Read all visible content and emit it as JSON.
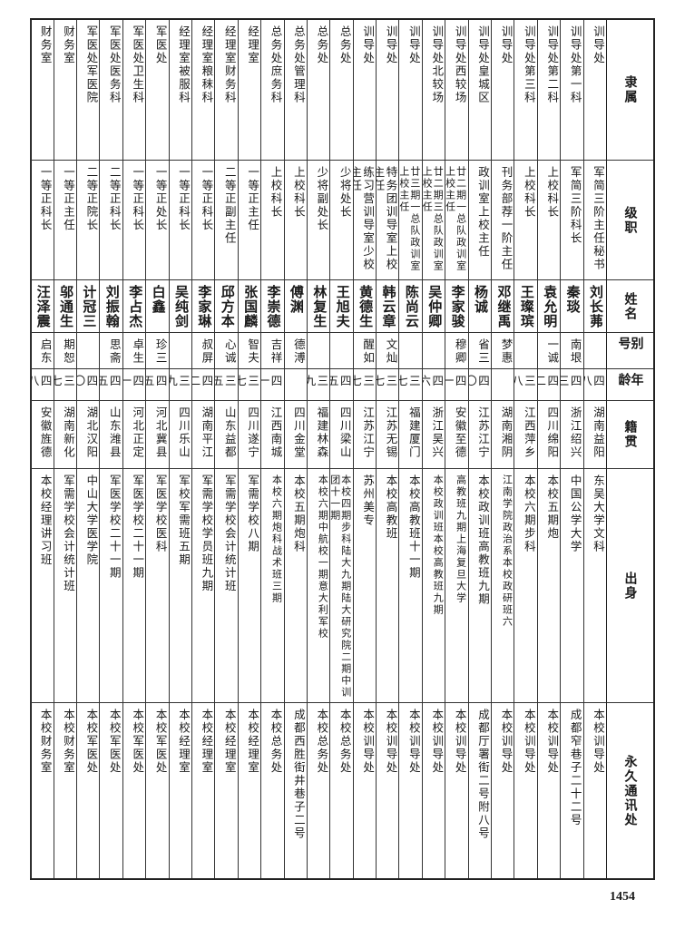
{
  "headers": {
    "department": "隶属",
    "rank": "级职",
    "name": "姓名",
    "alias": "别号",
    "age": "年龄",
    "native_place": "籍贯",
    "education": "出身",
    "address": "永久通讯处"
  },
  "rows": [
    {
      "department": "训导处",
      "rank": "军简三阶主任秘书",
      "name": "刘长茀",
      "alias": "",
      "age": "四八",
      "native_place": "湖南益阳",
      "education": "东吴大学文科",
      "address": "本校训导处"
    },
    {
      "department": "训导处第一科",
      "rank": "军简三阶科长",
      "name": "秦琰",
      "alias": "南垠",
      "age": "四三",
      "native_place": "浙江绍兴",
      "education": "中国公学大学",
      "address": "成都窄巷子二十二号"
    },
    {
      "department": "训导处第二科",
      "rank": "上校科长",
      "name": "袁允明",
      "alias": "一诚",
      "age": "四二",
      "native_place": "四川绵阳",
      "education": "本校五期炮",
      "address": "本校训导处"
    },
    {
      "department": "训导处第三科",
      "rank": "上校科长",
      "name": "王璨瑸",
      "alias": "",
      "age": "三八",
      "native_place": "江西萍乡",
      "education": "本校六期步科",
      "address": "本校训导处"
    },
    {
      "department": "训导处",
      "rank": "刊务部荐一阶主任",
      "name": "邓继禹",
      "alias": "梦惠",
      "age": "",
      "native_place": "湖南湘阴",
      "education": "江南学院政治系本校政研班六",
      "address": "本校训导处"
    },
    {
      "department": "训导处皇城区",
      "rank": "政训室上校主任",
      "name": "杨诚",
      "alias": "省三",
      "age": "四〇",
      "native_place": "江苏江宁",
      "education": "本校政训班高教班九期",
      "address": "成都厅署街二号附八号"
    },
    {
      "department": "训导处西较场",
      "rank": "廿二期一总队政训室上校主任",
      "name": "李家骏",
      "alias": "穆卿",
      "age": "四一",
      "native_place": "安徽至德",
      "education": "高教班九期上海复旦大学",
      "address": "本校训导处"
    },
    {
      "department": "训导处北较场",
      "rank": "廿二期三总队政训室上校主任",
      "name": "吴仲卿",
      "alias": "",
      "age": "四六",
      "native_place": "浙江吴兴",
      "education": "本校政训班本校高教班九期",
      "address": "本校训导处"
    },
    {
      "department": "训导处",
      "rank": "廿三期一总队政训室上校主任",
      "name": "陈尚云",
      "alias": "",
      "age": "三七",
      "native_place": "福建厦门",
      "education": "本校高教班十一期",
      "address": "本校训导处"
    },
    {
      "department": "训导处",
      "rank": "特务团训导室上校主任",
      "name": "韩云章",
      "alias": "文灿",
      "age": "三七",
      "native_place": "江苏无锡",
      "education": "本校高教班",
      "address": "本校训导处"
    },
    {
      "department": "训导处",
      "rank": "练习营训导室少校主任",
      "name": "黄德生",
      "alias": "醒如",
      "age": "三七",
      "native_place": "江苏江宁",
      "education": "苏州美专",
      "address": "本校训导处"
    },
    {
      "department": "总务处",
      "rank": "少将处长",
      "name": "王旭夫",
      "alias": "",
      "age": "四五",
      "native_place": "四川梁山",
      "education": "本校四期步科陆大九期陆大研究院二期中训团十一期",
      "address": "本校总务处"
    },
    {
      "department": "总务处",
      "rank": "少将副处长",
      "name": "林复生",
      "alias": "",
      "age": "三九",
      "native_place": "福建林森",
      "education": "本校六期中航校一期意大利军校",
      "address": "本校总务处"
    },
    {
      "department": "总务处管理科",
      "rank": "上校科长",
      "name": "傅渊",
      "alias": "德溥",
      "age": "",
      "native_place": "四川金堂",
      "education": "本校五期炮科",
      "address": "成都西胜街井巷子二号"
    },
    {
      "department": "总务处庶务科",
      "rank": "上校科长",
      "name": "李崇德",
      "alias": "吉祥",
      "age": "四一",
      "native_place": "江西南城",
      "education": "本校六期炮科战术班三期",
      "address": "本校总务处"
    },
    {
      "department": "经理室",
      "rank": "一等正主任",
      "name": "张国麟",
      "alias": "智夫",
      "age": "三七",
      "native_place": "四川遂宁",
      "education": "军需学校八期",
      "address": "本校经理室"
    },
    {
      "department": "经理室财务科",
      "rank": "二等正副主任",
      "name": "邱方本",
      "alias": "心诚",
      "age": "三五",
      "native_place": "山东益都",
      "education": "军需学校会计统计班",
      "address": "本校经理室"
    },
    {
      "department": "经理室粮秣科",
      "rank": "一等正科长",
      "name": "李家琳",
      "alias": "叔屏",
      "age": "四二",
      "native_place": "湖南平江",
      "education": "军需学校学员班九期",
      "address": "本校经理室"
    },
    {
      "department": "经理室被服科",
      "rank": "一等正科长",
      "name": "吴纯剑",
      "alias": "",
      "age": "三九",
      "native_place": "四川乐山",
      "education": "军校军需班五期",
      "address": "本校经理室"
    },
    {
      "department": "军医处",
      "rank": "一等正处长",
      "name": "白鑫",
      "alias": "珍三",
      "age": "四五",
      "native_place": "河北冀县",
      "education": "军医学校医科",
      "address": "本校军医处"
    },
    {
      "department": "军医处卫生科",
      "rank": "一等正科长",
      "name": "李占杰",
      "alias": "卓生",
      "age": "四一",
      "native_place": "河北正定",
      "education": "军医学校二十一期",
      "address": "本校军医处"
    },
    {
      "department": "军医处医务科",
      "rank": "二等正科长",
      "name": "刘振翰",
      "alias": "思斋",
      "age": "四五",
      "native_place": "山东潍县",
      "education": "军医学校二十一期",
      "address": "本校军医处"
    },
    {
      "department": "军医处军医院",
      "rank": "二等正院长",
      "name": "计冠三",
      "alias": "",
      "age": "四〇",
      "native_place": "湖北汉阳",
      "education": "中山大学医学院",
      "address": "本校军医处"
    },
    {
      "department": "财务室",
      "rank": "一等正主任",
      "name": "邬通生",
      "alias": "期恕",
      "age": "三七",
      "native_place": "湖南新化",
      "education": "军需学校会计统计班",
      "address": "本校财务室"
    },
    {
      "department": "财务室",
      "rank": "一等正科长",
      "name": "汪泽震",
      "alias": "启东",
      "age": "四八",
      "native_place": "安徽旌德",
      "education": "本校经理讲习班",
      "address": "本校财务室"
    }
  ],
  "page_number": "1454"
}
